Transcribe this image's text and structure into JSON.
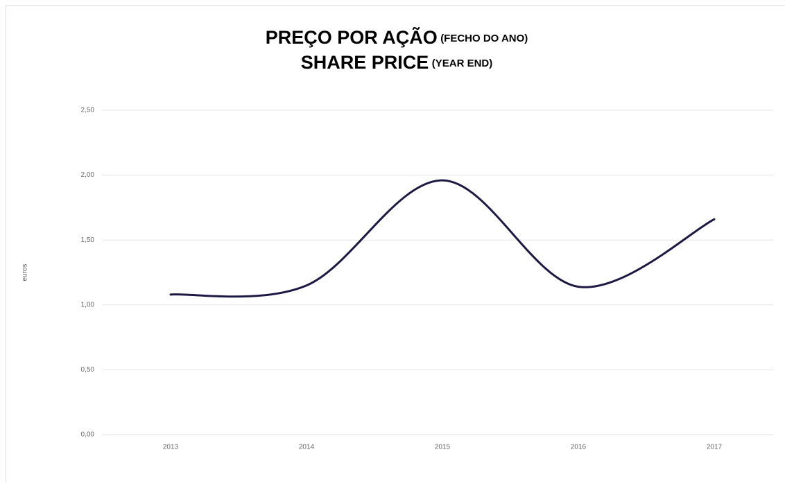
{
  "chart_data": {
    "type": "line",
    "title": {
      "line1": "PREÇO POR AÇÃO",
      "line1_note": "(FECHO DO ANO)",
      "line2": "SHARE PRICE",
      "line2_note": "(YEAR END)"
    },
    "ylabel": "euros",
    "categories": [
      "2013",
      "2014",
      "2015",
      "2016",
      "2017"
    ],
    "series": [
      {
        "name": "share price",
        "color": "#1c1a45",
        "values": [
          1.08,
          1.15,
          1.96,
          1.14,
          1.66
        ]
      }
    ],
    "ylim": [
      0,
      2.5
    ],
    "yticks": [
      {
        "value": 0,
        "label": "0,00"
      },
      {
        "value": 0.5,
        "label": "0,50"
      },
      {
        "value": 1,
        "label": "1,00"
      },
      {
        "value": 1.5,
        "label": "1,50"
      },
      {
        "value": 2,
        "label": "2,00"
      },
      {
        "value": 2.5,
        "label": "2,50"
      }
    ],
    "grid": true,
    "smooth": true
  }
}
